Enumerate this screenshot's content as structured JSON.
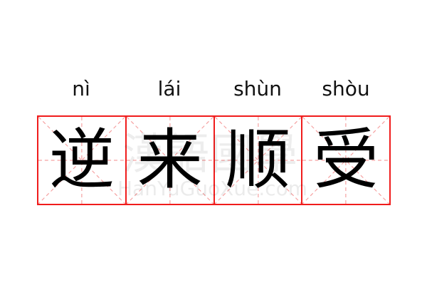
{
  "idiom": [
    {
      "pinyin": "nì",
      "char": "逆"
    },
    {
      "pinyin": "lái",
      "char": "来"
    },
    {
      "pinyin": "shùn",
      "char": "顺"
    },
    {
      "pinyin": "shòu",
      "char": "受"
    }
  ],
  "watermark": {
    "logo": "漢語國學",
    "site": "HanYuGuoXue.com"
  },
  "colors": {
    "grid_border": "#f01c1c",
    "guide_lines": "#f5a0a0",
    "text": "#000000"
  }
}
